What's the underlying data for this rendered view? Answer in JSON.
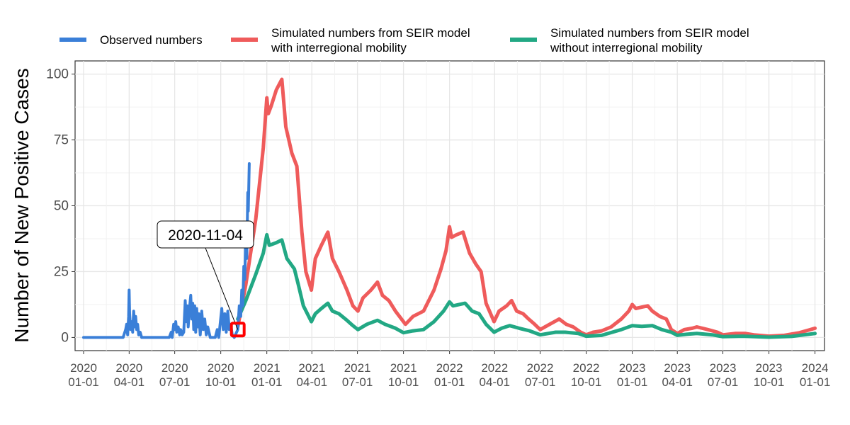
{
  "chart_data": {
    "type": "line",
    "title": "",
    "xlabel": "",
    "ylabel": "Number of New Positive Cases",
    "ylim": [
      0,
      100
    ],
    "xlim": [
      "2019-12-15",
      "2024-01-20"
    ],
    "y_ticks": [
      0,
      25,
      50,
      75,
      100
    ],
    "x_ticks": [
      {
        "date": "2020-01-01",
        "label": [
          "2020",
          "01-01"
        ]
      },
      {
        "date": "2020-04-01",
        "label": [
          "2020",
          "04-01"
        ]
      },
      {
        "date": "2020-07-01",
        "label": [
          "2020",
          "07-01"
        ]
      },
      {
        "date": "2020-10-01",
        "label": [
          "2020",
          "10-01"
        ]
      },
      {
        "date": "2021-01-01",
        "label": [
          "2021",
          "01-01"
        ]
      },
      {
        "date": "2021-04-01",
        "label": [
          "2021",
          "04-01"
        ]
      },
      {
        "date": "2021-07-01",
        "label": [
          "2021",
          "07-01"
        ]
      },
      {
        "date": "2021-10-01",
        "label": [
          "2021",
          "10-01"
        ]
      },
      {
        "date": "2022-01-01",
        "label": [
          "2022",
          "01-01"
        ]
      },
      {
        "date": "2022-04-01",
        "label": [
          "2022",
          "04-01"
        ]
      },
      {
        "date": "2022-07-01",
        "label": [
          "2022",
          "07-01"
        ]
      },
      {
        "date": "2022-10-01",
        "label": [
          "2022",
          "10-01"
        ]
      },
      {
        "date": "2023-01-01",
        "label": [
          "2023",
          "01-01"
        ]
      },
      {
        "date": "2023-04-01",
        "label": [
          "2023",
          "04-01"
        ]
      },
      {
        "date": "2023-07-01",
        "label": [
          "2023",
          "07-01"
        ]
      },
      {
        "date": "2023-10-01",
        "label": [
          "2023",
          "10-01"
        ]
      },
      {
        "date": "2024-01-01",
        "label": [
          "2024",
          "01-01"
        ]
      }
    ],
    "grid": true,
    "legend_position": "top",
    "annotation": {
      "label": "2020-11-04",
      "date": "2020-11-04",
      "value": 3,
      "marker_color": "#ff0000"
    },
    "series": [
      {
        "name": "Observed numbers",
        "color": "#3a7fd8",
        "points": [
          [
            "2020-01-01",
            0
          ],
          [
            "2020-03-20",
            0
          ],
          [
            "2020-03-25",
            3
          ],
          [
            "2020-03-27",
            5
          ],
          [
            "2020-03-29",
            1
          ],
          [
            "2020-03-31",
            8
          ],
          [
            "2020-04-01",
            18
          ],
          [
            "2020-04-02",
            9
          ],
          [
            "2020-04-04",
            3
          ],
          [
            "2020-04-06",
            6
          ],
          [
            "2020-04-08",
            2
          ],
          [
            "2020-04-10",
            10
          ],
          [
            "2020-04-12",
            4
          ],
          [
            "2020-04-14",
            8
          ],
          [
            "2020-04-16",
            3
          ],
          [
            "2020-04-18",
            5
          ],
          [
            "2020-04-20",
            1
          ],
          [
            "2020-04-23",
            2
          ],
          [
            "2020-04-26",
            0
          ],
          [
            "2020-06-20",
            0
          ],
          [
            "2020-06-24",
            2
          ],
          [
            "2020-06-26",
            0
          ],
          [
            "2020-06-29",
            5
          ],
          [
            "2020-07-01",
            3
          ],
          [
            "2020-07-03",
            6
          ],
          [
            "2020-07-05",
            2
          ],
          [
            "2020-07-08",
            4
          ],
          [
            "2020-07-11",
            1
          ],
          [
            "2020-07-13",
            3
          ],
          [
            "2020-07-16",
            1
          ],
          [
            "2020-07-19",
            2
          ],
          [
            "2020-07-22",
            14
          ],
          [
            "2020-07-24",
            6
          ],
          [
            "2020-07-26",
            12
          ],
          [
            "2020-07-28",
            4
          ],
          [
            "2020-07-30",
            10
          ],
          [
            "2020-08-02",
            16
          ],
          [
            "2020-08-04",
            7
          ],
          [
            "2020-08-06",
            13
          ],
          [
            "2020-08-08",
            3
          ],
          [
            "2020-08-10",
            12
          ],
          [
            "2020-08-12",
            2
          ],
          [
            "2020-08-14",
            11
          ],
          [
            "2020-08-16",
            4
          ],
          [
            "2020-08-18",
            9
          ],
          [
            "2020-08-21",
            1
          ],
          [
            "2020-08-24",
            10
          ],
          [
            "2020-08-27",
            3
          ],
          [
            "2020-08-30",
            7
          ],
          [
            "2020-09-02",
            1
          ],
          [
            "2020-09-05",
            4
          ],
          [
            "2020-09-10",
            0
          ],
          [
            "2020-09-20",
            0
          ],
          [
            "2020-09-24",
            3
          ],
          [
            "2020-09-27",
            0
          ],
          [
            "2020-10-03",
            11
          ],
          [
            "2020-10-06",
            3
          ],
          [
            "2020-10-09",
            9
          ],
          [
            "2020-10-12",
            2
          ],
          [
            "2020-10-15",
            10
          ],
          [
            "2020-10-18",
            3
          ],
          [
            "2020-10-21",
            5
          ],
          [
            "2020-10-24",
            1
          ],
          [
            "2020-10-28",
            0
          ],
          [
            "2020-11-04",
            3
          ],
          [
            "2020-11-07",
            12
          ],
          [
            "2020-11-10",
            8
          ],
          [
            "2020-11-12",
            18
          ],
          [
            "2020-11-14",
            12
          ],
          [
            "2020-11-16",
            27
          ],
          [
            "2020-11-18",
            22
          ],
          [
            "2020-11-20",
            40
          ],
          [
            "2020-11-22",
            30
          ],
          [
            "2020-11-24",
            55
          ],
          [
            "2020-11-25",
            48
          ],
          [
            "2020-11-27",
            66
          ]
        ]
      },
      {
        "name": "Simulated numbers from SEIR model with interregional mobility",
        "color": "#ef5b5b",
        "points": [
          [
            "2020-11-04",
            4
          ],
          [
            "2020-11-20",
            20
          ],
          [
            "2020-12-10",
            45
          ],
          [
            "2020-12-25",
            72
          ],
          [
            "2021-01-01",
            91
          ],
          [
            "2021-01-04",
            85
          ],
          [
            "2021-01-10",
            88
          ],
          [
            "2021-01-20",
            94
          ],
          [
            "2021-01-31",
            98
          ],
          [
            "2021-02-08",
            80
          ],
          [
            "2021-02-20",
            70
          ],
          [
            "2021-03-02",
            65
          ],
          [
            "2021-03-12",
            40
          ],
          [
            "2021-03-20",
            25
          ],
          [
            "2021-03-31",
            18
          ],
          [
            "2021-04-08",
            30
          ],
          [
            "2021-04-20",
            35
          ],
          [
            "2021-05-03",
            40
          ],
          [
            "2021-05-12",
            30
          ],
          [
            "2021-05-25",
            25
          ],
          [
            "2021-06-10",
            18
          ],
          [
            "2021-06-22",
            12
          ],
          [
            "2021-07-02",
            10
          ],
          [
            "2021-07-12",
            15
          ],
          [
            "2021-07-28",
            18
          ],
          [
            "2021-08-10",
            21
          ],
          [
            "2021-08-20",
            16
          ],
          [
            "2021-09-02",
            14
          ],
          [
            "2021-09-15",
            10
          ],
          [
            "2021-10-01",
            6
          ],
          [
            "2021-10-05",
            5
          ],
          [
            "2021-10-20",
            8
          ],
          [
            "2021-11-10",
            10
          ],
          [
            "2021-12-01",
            18
          ],
          [
            "2021-12-15",
            26
          ],
          [
            "2021-12-25",
            33
          ],
          [
            "2022-01-01",
            42
          ],
          [
            "2022-01-05",
            38
          ],
          [
            "2022-01-15",
            39
          ],
          [
            "2022-01-28",
            40
          ],
          [
            "2022-02-10",
            32
          ],
          [
            "2022-02-22",
            28
          ],
          [
            "2022-03-05",
            25
          ],
          [
            "2022-03-15",
            13
          ],
          [
            "2022-03-31",
            6
          ],
          [
            "2022-04-10",
            10
          ],
          [
            "2022-04-25",
            12
          ],
          [
            "2022-05-05",
            14
          ],
          [
            "2022-05-15",
            10
          ],
          [
            "2022-05-28",
            9
          ],
          [
            "2022-06-08",
            7
          ],
          [
            "2022-06-20",
            5
          ],
          [
            "2022-07-01",
            3
          ],
          [
            "2022-07-20",
            5
          ],
          [
            "2022-08-08",
            7
          ],
          [
            "2022-08-22",
            5
          ],
          [
            "2022-09-05",
            4
          ],
          [
            "2022-09-20",
            2
          ],
          [
            "2022-10-01",
            1
          ],
          [
            "2022-10-15",
            2
          ],
          [
            "2022-11-01",
            2.5
          ],
          [
            "2022-11-20",
            4
          ],
          [
            "2022-12-10",
            7
          ],
          [
            "2022-12-25",
            10
          ],
          [
            "2023-01-01",
            12.5
          ],
          [
            "2023-01-08",
            11
          ],
          [
            "2023-01-20",
            11.5
          ],
          [
            "2023-02-01",
            12
          ],
          [
            "2023-02-10",
            10
          ],
          [
            "2023-02-25",
            8
          ],
          [
            "2023-03-10",
            7
          ],
          [
            "2023-03-20",
            3
          ],
          [
            "2023-04-01",
            1.5
          ],
          [
            "2023-04-15",
            3
          ],
          [
            "2023-05-01",
            3.5
          ],
          [
            "2023-05-10",
            4
          ],
          [
            "2023-06-01",
            3
          ],
          [
            "2023-06-20",
            2
          ],
          [
            "2023-07-01",
            1
          ],
          [
            "2023-07-25",
            1.5
          ],
          [
            "2023-08-15",
            1.5
          ],
          [
            "2023-09-01",
            1
          ],
          [
            "2023-10-01",
            0.5
          ],
          [
            "2023-11-01",
            0.8
          ],
          [
            "2023-12-01",
            1.8
          ],
          [
            "2024-01-01",
            3.5
          ]
        ]
      },
      {
        "name": "Simulated numbers from SEIR model without interregional mobility",
        "color": "#22a884",
        "points": [
          [
            "2020-11-04",
            7
          ],
          [
            "2020-11-20",
            14
          ],
          [
            "2020-12-10",
            24
          ],
          [
            "2020-12-25",
            32
          ],
          [
            "2021-01-01",
            39
          ],
          [
            "2021-01-06",
            35
          ],
          [
            "2021-01-20",
            36
          ],
          [
            "2021-01-31",
            37
          ],
          [
            "2021-02-10",
            30
          ],
          [
            "2021-02-25",
            26
          ],
          [
            "2021-03-05",
            20
          ],
          [
            "2021-03-15",
            12
          ],
          [
            "2021-03-31",
            6
          ],
          [
            "2021-04-08",
            9
          ],
          [
            "2021-04-20",
            11
          ],
          [
            "2021-05-03",
            13
          ],
          [
            "2021-05-12",
            10
          ],
          [
            "2021-05-25",
            9
          ],
          [
            "2021-06-10",
            6.5
          ],
          [
            "2021-06-22",
            4.5
          ],
          [
            "2021-07-02",
            3
          ],
          [
            "2021-07-20",
            5
          ],
          [
            "2021-08-10",
            6.5
          ],
          [
            "2021-08-25",
            5
          ],
          [
            "2021-09-15",
            3.5
          ],
          [
            "2021-10-01",
            1.8
          ],
          [
            "2021-10-20",
            2.5
          ],
          [
            "2021-11-10",
            3
          ],
          [
            "2021-12-01",
            6
          ],
          [
            "2021-12-20",
            10
          ],
          [
            "2022-01-01",
            13.5
          ],
          [
            "2022-01-08",
            12
          ],
          [
            "2022-01-20",
            12.5
          ],
          [
            "2022-02-01",
            13
          ],
          [
            "2022-02-15",
            10
          ],
          [
            "2022-03-01",
            9
          ],
          [
            "2022-03-15",
            5
          ],
          [
            "2022-03-31",
            2
          ],
          [
            "2022-04-15",
            3.5
          ],
          [
            "2022-05-01",
            4.5
          ],
          [
            "2022-05-20",
            3.5
          ],
          [
            "2022-06-10",
            2.5
          ],
          [
            "2022-07-01",
            1
          ],
          [
            "2022-08-01",
            2
          ],
          [
            "2022-08-20",
            2
          ],
          [
            "2022-09-15",
            1.5
          ],
          [
            "2022-10-01",
            0.5
          ],
          [
            "2022-11-01",
            0.8
          ],
          [
            "2022-12-10",
            3
          ],
          [
            "2023-01-01",
            4.5
          ],
          [
            "2023-01-20",
            4.2
          ],
          [
            "2023-02-10",
            4.5
          ],
          [
            "2023-03-01",
            3
          ],
          [
            "2023-03-20",
            2
          ],
          [
            "2023-04-01",
            0.8
          ],
          [
            "2023-04-20",
            1.2
          ],
          [
            "2023-05-10",
            1.5
          ],
          [
            "2023-06-10",
            1
          ],
          [
            "2023-07-01",
            0.3
          ],
          [
            "2023-08-10",
            0.5
          ],
          [
            "2023-10-01",
            0.1
          ],
          [
            "2023-11-15",
            0.4
          ],
          [
            "2024-01-01",
            1.5
          ]
        ]
      }
    ],
    "legend": [
      {
        "lines": [
          "Observed numbers"
        ],
        "color": "#3a7fd8"
      },
      {
        "lines": [
          "Simulated numbers from SEIR model",
          "with interregional mobility"
        ],
        "color": "#ef5b5b"
      },
      {
        "lines": [
          "Simulated numbers from SEIR model",
          "without interregional mobility"
        ],
        "color": "#22a884"
      }
    ]
  }
}
